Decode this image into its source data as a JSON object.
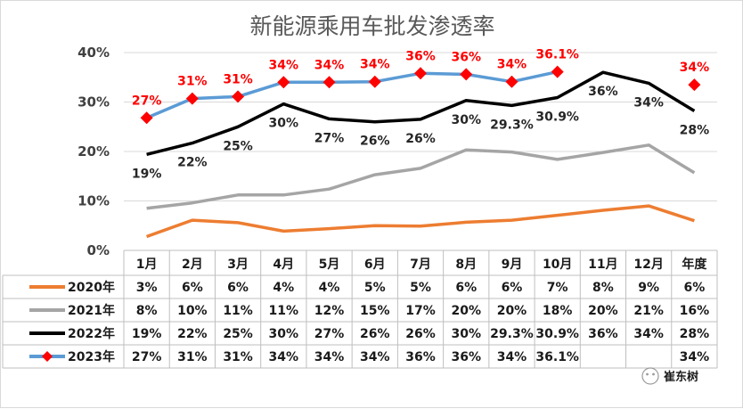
{
  "chart_data": {
    "type": "line",
    "title": "新能源乘用车批发渗透率",
    "categories": [
      "1月",
      "2月",
      "3月",
      "4月",
      "5月",
      "6月",
      "7月",
      "8月",
      "9月",
      "10月",
      "11月",
      "12月",
      "年度"
    ],
    "ylim": [
      0,
      40
    ],
    "yticks": [
      "0%",
      "10%",
      "20%",
      "30%",
      "40%"
    ],
    "grid": true,
    "legend": "data-table-left",
    "series": [
      {
        "name": "2020年",
        "color": "#ed7d31",
        "marker": "none",
        "values": [
          2.8,
          6.1,
          5.6,
          3.9,
          4.4,
          5.0,
          4.9,
          5.7,
          6.1,
          7.1,
          8.1,
          9.0,
          6.0
        ],
        "table_labels": [
          "3%",
          "6%",
          "6%",
          "4%",
          "4%",
          "5%",
          "5%",
          "6%",
          "6%",
          "7%",
          "8%",
          "9%",
          "6%"
        ]
      },
      {
        "name": "2021年",
        "color": "#a5a5a5",
        "marker": "none",
        "values": [
          8.5,
          9.6,
          11.2,
          11.2,
          12.4,
          15.3,
          16.6,
          20.3,
          19.9,
          18.4,
          19.8,
          21.3,
          15.7
        ],
        "table_labels": [
          "8%",
          "10%",
          "11%",
          "11%",
          "12%",
          "15%",
          "17%",
          "20%",
          "20%",
          "18%",
          "20%",
          "21%",
          "16%"
        ]
      },
      {
        "name": "2022年",
        "color": "#000000",
        "marker": "none",
        "values": [
          19.4,
          21.7,
          25.0,
          29.6,
          26.6,
          26.0,
          26.5,
          30.3,
          29.3,
          30.9,
          36.0,
          33.8,
          28.2
        ],
        "table_labels": [
          "19%",
          "22%",
          "25%",
          "30%",
          "27%",
          "26%",
          "26%",
          "30%",
          "29.3%",
          "30.9%",
          "36%",
          "34%",
          "28%"
        ]
      },
      {
        "name": "2023年",
        "color": "#5b9bd5",
        "marker": "diamond",
        "marker_color": "#ff0000",
        "values": [
          26.8,
          30.7,
          31.1,
          34.0,
          34.0,
          34.1,
          35.8,
          35.6,
          34.1,
          36.1,
          null,
          null,
          33.5
        ],
        "table_labels": [
          "27%",
          "31%",
          "31%",
          "34%",
          "34%",
          "34%",
          "36%",
          "36%",
          "34%",
          "36.1%",
          "",
          "",
          "34%"
        ]
      }
    ]
  },
  "watermark": "崔东树"
}
